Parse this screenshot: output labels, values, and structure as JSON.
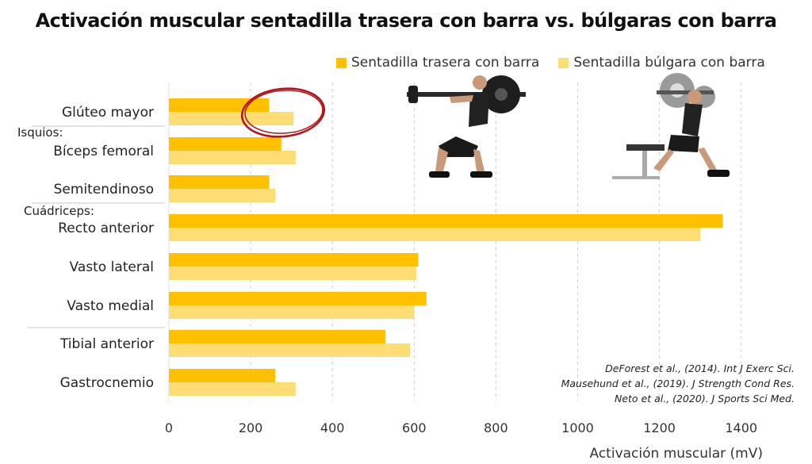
{
  "title": "Activación muscular sentadilla trasera con barra vs. búlgaras con barra",
  "legend": [
    {
      "label": "Sentadilla trasera con barra",
      "color": "#FFC000"
    },
    {
      "label": "Sentadilla búlgara con barra",
      "color": "#FFDD75"
    }
  ],
  "references": [
    "DeForest et al., (2014). Int J Exerc Sci.",
    "Mausehund et al., (2019). J Strength Cond Res.",
    "Neto et al., (2020). J Sports Sci Med."
  ],
  "chart_data": {
    "type": "bar",
    "orientation": "horizontal",
    "title": "Activación muscular sentadilla trasera con barra vs. búlgaras con barra",
    "xlabel": "Activación muscular (mV)",
    "ylabel": "",
    "xlim": [
      0,
      1500
    ],
    "xticks": [
      0,
      200,
      400,
      600,
      800,
      1000,
      1200,
      1400
    ],
    "grid": "vertical-dashed",
    "legend_position": "top-right",
    "group_labels": [
      "Isquios:",
      "Cuádriceps:"
    ],
    "categories": [
      "Glúteo mayor",
      "Bíceps femoral",
      "Semitendinoso",
      "Recto anterior",
      "Vasto lateral",
      "Vasto medial",
      "Tibial anterior",
      "Gastrocnemio"
    ],
    "series": [
      {
        "name": "Sentadilla trasera con barra",
        "color": "#FFC000",
        "values": [
          245,
          275,
          245,
          1355,
          610,
          630,
          530,
          260
        ]
      },
      {
        "name": "Sentadilla búlgara con barra",
        "color": "#FFDD75",
        "values": [
          305,
          310,
          260,
          1300,
          605,
          600,
          590,
          310
        ]
      }
    ]
  }
}
